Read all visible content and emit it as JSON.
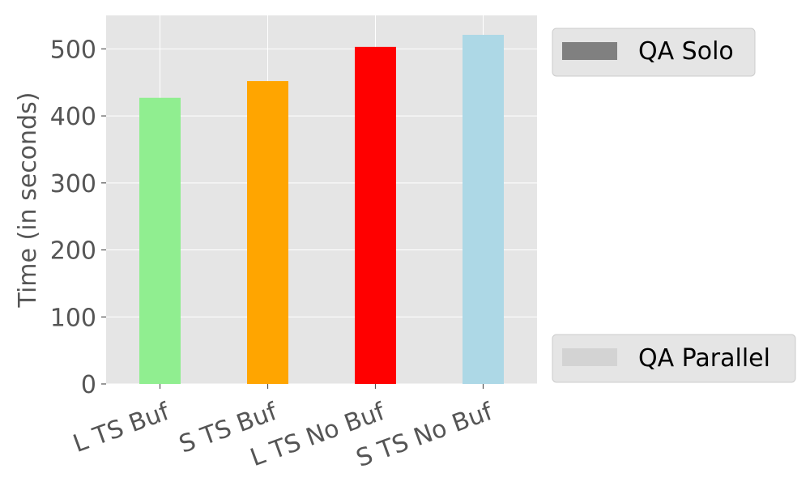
{
  "chart_data": {
    "type": "bar",
    "title": "",
    "xlabel": "",
    "ylabel": "Time (in seconds)",
    "categories": [
      "L TS Buf",
      "S TS Buf",
      "L TS No Buf",
      "S TS No Buf"
    ],
    "values": [
      427,
      452,
      503,
      521
    ],
    "bar_colors": [
      "#90ee90",
      "#ffa500",
      "#ff0000",
      "#add8e6"
    ],
    "ylim": [
      0,
      550
    ],
    "yticks": [
      0,
      100,
      200,
      300,
      400,
      500
    ],
    "grid": true,
    "plot_background": "#e5e5e5",
    "grid_color": "#ffffff",
    "legend": {
      "placement": "right",
      "entries": [
        {
          "label": "QA Solo",
          "color": "#808080"
        },
        {
          "label": "QA Parallel",
          "color": "#d3d3d3"
        }
      ]
    }
  }
}
